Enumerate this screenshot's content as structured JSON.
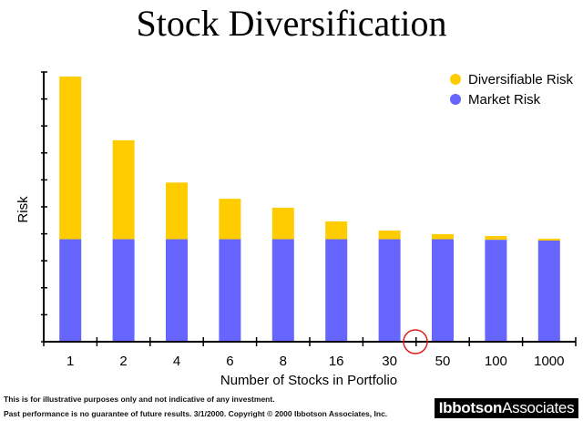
{
  "chart_data": {
    "type": "bar",
    "stacked": true,
    "title": "Stock Diversification",
    "xlabel": "Number of Stocks in Portfolio",
    "ylabel": "Risk",
    "ylim": [
      0,
      10
    ],
    "grid": false,
    "legend_position": "top-right",
    "categories": [
      "1",
      "2",
      "4",
      "6",
      "8",
      "16",
      "30",
      "50",
      "100",
      "1000"
    ],
    "series": [
      {
        "name": "Market Risk",
        "color": "#6666ff",
        "values": [
          3.8,
          3.8,
          3.8,
          3.8,
          3.8,
          3.8,
          3.8,
          3.8,
          3.78,
          3.75
        ]
      },
      {
        "name": "Diversifiable Risk",
        "color": "#ffcc00",
        "values": [
          6.03,
          3.67,
          2.1,
          1.5,
          1.17,
          0.66,
          0.32,
          0.19,
          0.14,
          0.07
        ]
      }
    ],
    "annotation": {
      "shape": "circle",
      "color": "#e02020"
    }
  },
  "footer": {
    "line1": "This is for illustrative purposes only and not indicative of any investment.",
    "line2": "Past performance is no guarantee of future results. 3/1/2000. Copyright © 2000 Ibbotson Associates, Inc.",
    "logo_bold": "Ibbotson",
    "logo_regular": "Associates"
  }
}
